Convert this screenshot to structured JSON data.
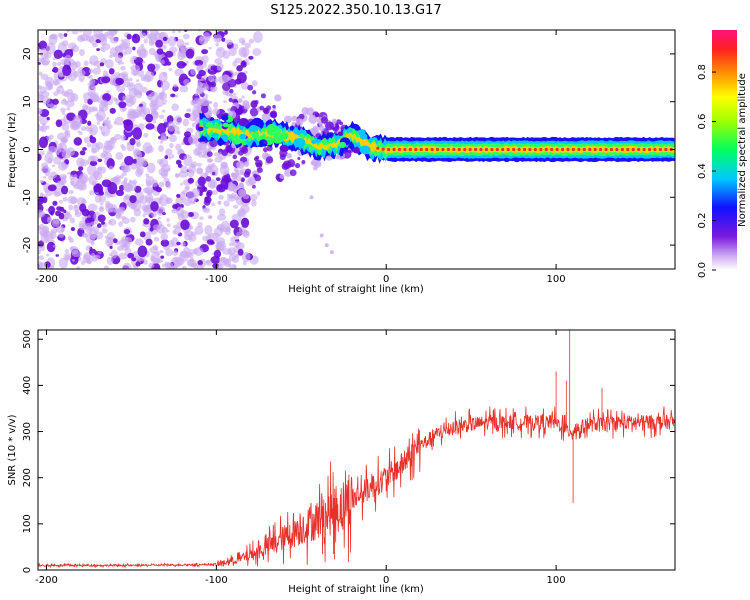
{
  "figure": {
    "title": "S125.2022.350.10.13.G17"
  },
  "colors": {
    "snr_line": "#e8302a",
    "scatter_light": "#c9a8f2",
    "scatter_dark": "#6a0dd8",
    "band_core": "#e83030"
  },
  "colorbar": {
    "label": "Normalized spectral amplitude",
    "ticks": [
      "0.0",
      "0.2",
      "0.4",
      "0.6",
      "0.8"
    ],
    "tick_values": [
      0.0,
      0.2,
      0.4,
      0.6,
      0.8
    ],
    "range": [
      0,
      0.97
    ],
    "colormap": "rainbow (violet-blue-cyan-green-yellow-orange-red-magenta)"
  },
  "chart_data": [
    {
      "type": "heatmap",
      "xlabel": "Height of straight line (km)",
      "ylabel": "Frequency (Hz)",
      "xlim": [
        -205,
        170
      ],
      "ylim": [
        -25,
        25
      ],
      "x_ticks": [
        -200,
        -100,
        0,
        100
      ],
      "x_tick_labels": [
        "-200",
        "-100",
        "0",
        "100"
      ],
      "y_ticks": [
        -20,
        -10,
        0,
        10,
        20
      ],
      "y_tick_labels": [
        "-20",
        "-10",
        "0",
        "10",
        "20"
      ],
      "grid": false,
      "description_points": {
        "noise_region_x": [
          -205,
          -82
        ],
        "transition_region_x": [
          -110,
          -20
        ],
        "band_center_freq": [
          {
            "x": -110,
            "y": 4.5
          },
          {
            "x": -80,
            "y": 3.0
          },
          {
            "x": -65,
            "y": 3.5
          },
          {
            "x": -50,
            "y": 2.0
          },
          {
            "x": -40,
            "y": 0.5
          },
          {
            "x": -30,
            "y": 1.0
          },
          {
            "x": -20,
            "y": 3.0
          },
          {
            "x": -10,
            "y": 0.5
          },
          {
            "x": 0,
            "y": 0.0
          },
          {
            "x": 100,
            "y": 0.0
          },
          {
            "x": 170,
            "y": 0.0
          }
        ]
      }
    },
    {
      "type": "line",
      "xlabel": "Height of straight line (km)",
      "ylabel": "SNR (10 * v/v)",
      "xlim": [
        -205,
        170
      ],
      "ylim": [
        0,
        520
      ],
      "x_ticks": [
        -200,
        -100,
        0,
        100
      ],
      "x_tick_labels": [
        "-200",
        "-100",
        "0",
        "100"
      ],
      "y_ticks": [
        0,
        100,
        200,
        300,
        400,
        500
      ],
      "y_tick_labels": [
        "0",
        "100",
        "200",
        "300",
        "400",
        "500"
      ],
      "grid": false,
      "trend": {
        "x": [
          -205,
          -150,
          -100,
          -85,
          -75,
          -60,
          -45,
          -30,
          -15,
          0,
          10,
          20,
          30,
          40,
          60,
          80,
          100,
          108,
          120,
          140,
          170
        ],
        "y": [
          10,
          10,
          12,
          25,
          40,
          70,
          100,
          130,
          165,
          200,
          230,
          270,
          295,
          310,
          320,
          320,
          320,
          300,
          315,
          320,
          320
        ]
      },
      "spikes": [
        {
          "x": 108,
          "y": 520
        },
        {
          "x": 110,
          "y": 145
        },
        {
          "x": 106,
          "y": 410
        },
        {
          "x": 127,
          "y": 395
        },
        {
          "x": 100,
          "y": 430
        }
      ]
    }
  ]
}
